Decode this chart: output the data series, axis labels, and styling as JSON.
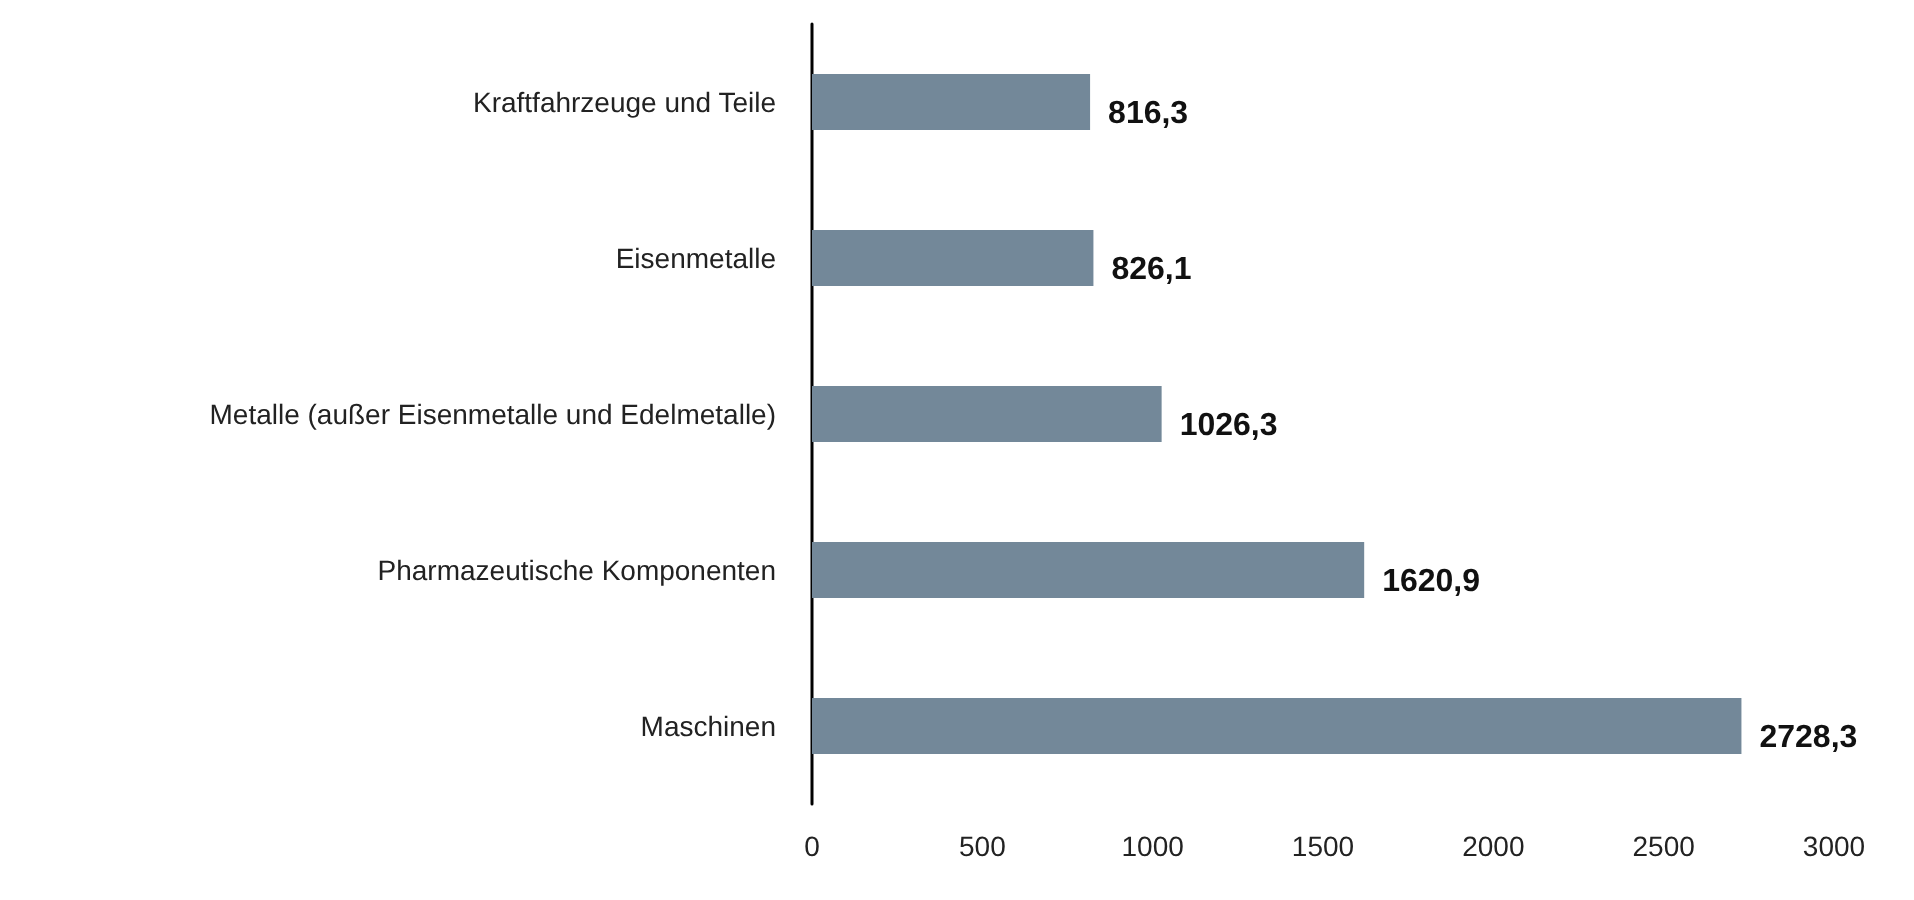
{
  "chart_data": {
    "type": "bar",
    "orientation": "horizontal",
    "categories": [
      "Kraftfahrzeuge und Teile",
      "Eisenmetalle",
      "Metalle (außer Eisenmetalle und Edelmetalle)",
      "Pharmazeutische Komponenten",
      "Maschinen"
    ],
    "values": [
      816.3,
      826.1,
      1026.3,
      1620.9,
      2728.3
    ],
    "value_labels": [
      "816,3",
      "826,1",
      "1026,3",
      "1620,9",
      "2728,3"
    ],
    "color": "#738899",
    "xlim": [
      0,
      3000
    ],
    "xticks": [
      0,
      500,
      1000,
      1500,
      2000,
      2500,
      3000
    ],
    "grid": false
  }
}
